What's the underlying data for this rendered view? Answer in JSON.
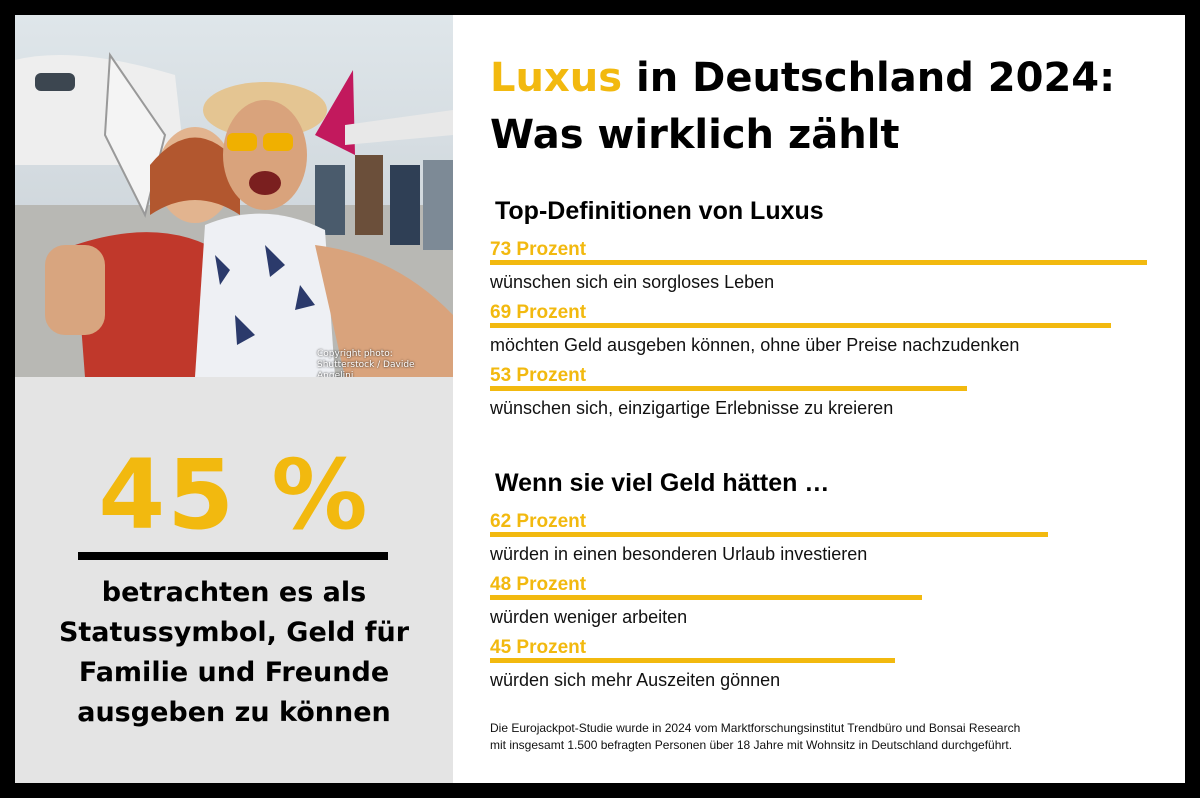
{
  "title": {
    "accent": "Luxus",
    "rest": "in Deutschland 2024:",
    "line2": "Was wirklich zählt"
  },
  "photo": {
    "copyright_line1": "Copyright photo:",
    "copyright_line2": "Shutterstock / Davide Angelini"
  },
  "highlight": {
    "value": "45 %",
    "caption_lines": [
      "betrachten es als",
      "Statussymbol, Geld für",
      "Familie und Freunde",
      "ausgeben zu können"
    ]
  },
  "colors": {
    "accent": "#f2b90f",
    "text": "#000000",
    "panel": "#e4e4e4"
  },
  "footnote": {
    "line1": "Die Eurojackpot-Studie wurde in 2024 vom Marktforschungsinstitut Trendbüro und Bonsai Research",
    "line2": "mit insgesamt 1.500 befragten Personen über 18 Jahre mit Wohnsitz in Deutschland durchgeführt."
  },
  "chart_data": [
    {
      "type": "bar",
      "title": "Top-Definitionen von Luxus",
      "unit": "Prozent",
      "xlim": [
        0,
        100
      ],
      "categories": [
        "wünschen sich ein sorgloses Leben",
        "möchten Geld ausgeben können, ohne über Preise nachzudenken",
        "wünschen sich, einzigartige Erlebnisse zu kreieren"
      ],
      "values": [
        73,
        69,
        53
      ]
    },
    {
      "type": "bar",
      "title": "Wenn sie viel Geld hätten …",
      "unit": "Prozent",
      "xlim": [
        0,
        100
      ],
      "categories": [
        "würden in einen besonderen Urlaub investieren",
        "würden weniger arbeiten",
        "würden sich mehr Auszeiten gönnen"
      ],
      "values": [
        62,
        48,
        45
      ]
    }
  ]
}
